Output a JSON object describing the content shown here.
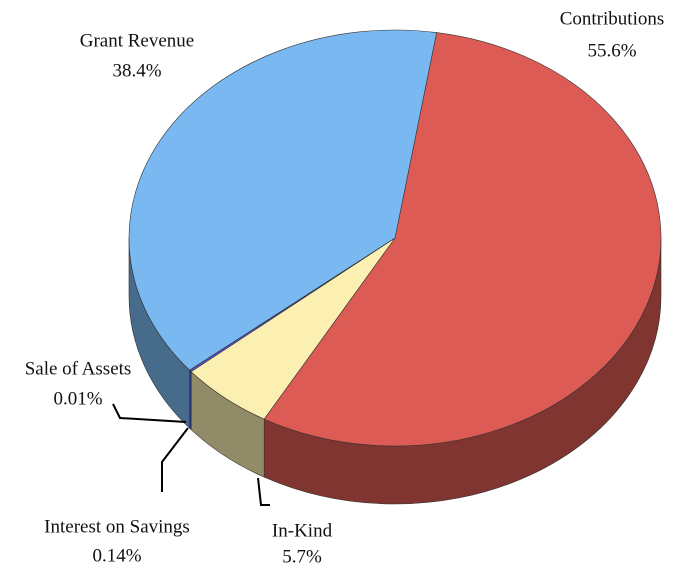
{
  "chart_data": {
    "type": "pie",
    "categories": [
      "Contributions",
      "In-Kind",
      "Interest on Savings",
      "Sale of Assets",
      "Grant Revenue"
    ],
    "values": [
      55.6,
      5.7,
      0.14,
      0.01,
      38.4
    ],
    "value_labels": [
      "55.6%",
      "5.7%",
      "0.14%",
      "0.01%",
      "38.4%"
    ],
    "colors": [
      "#dc5b55",
      "#fbefb2",
      "#5555d8",
      "#333399",
      "#79b8f0"
    ]
  }
}
